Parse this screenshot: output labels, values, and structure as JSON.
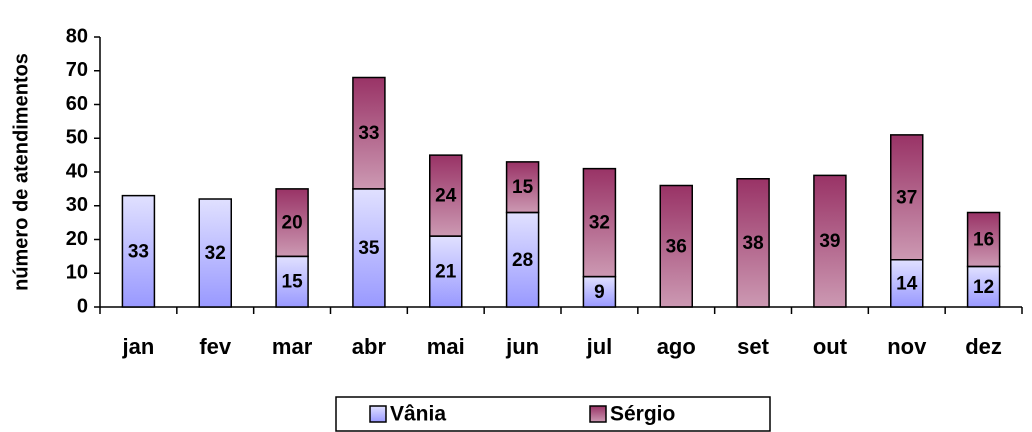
{
  "chart_data": {
    "type": "stacked_bar",
    "ylabel": "número de atendimentos",
    "categories": [
      "jan",
      "fev",
      "mar",
      "abr",
      "mai",
      "jun",
      "jul",
      "ago",
      "set",
      "out",
      "nov",
      "dez"
    ],
    "series": [
      {
        "name": "Vânia",
        "color": "#9999ff",
        "values": [
          33,
          32,
          15,
          35,
          21,
          28,
          9,
          null,
          null,
          null,
          14,
          12
        ]
      },
      {
        "name": "Sérgio",
        "color": "#993366",
        "values": [
          null,
          null,
          20,
          33,
          24,
          15,
          32,
          36,
          38,
          39,
          37,
          16
        ]
      }
    ],
    "ylim": [
      0,
      80
    ],
    "yticks": [
      0,
      10,
      20,
      30,
      40,
      50,
      60,
      70,
      80
    ],
    "legend": "bottom"
  }
}
